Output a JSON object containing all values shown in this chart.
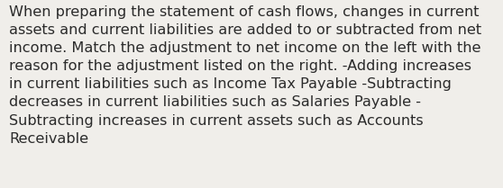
{
  "background_color": "#f0eeea",
  "text_color": "#2b2b2b",
  "lines": [
    "When preparing the statement of cash flows, changes in current",
    "assets and current liabilities are added to or subtracted from net",
    "income. Match the adjustment to net income on the left with the",
    "reason for the adjustment listed on the right. -Adding increases",
    "in current liabilities such as Income Tax Payable -Subtracting",
    "decreases in current liabilities such as Salaries Payable -",
    "Subtracting increases in current assets such as Accounts",
    "Receivable"
  ],
  "font_size": 11.6,
  "fig_width": 5.58,
  "fig_height": 2.09,
  "dpi": 100
}
